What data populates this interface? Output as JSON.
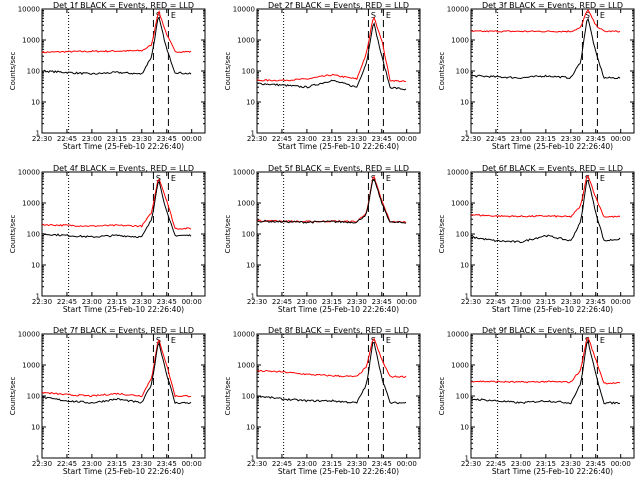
{
  "figure": {
    "time_axis_ticks": [
      "22:30",
      "22:45",
      "23:00",
      "23:15",
      "23:30",
      "23:45",
      "00:00"
    ],
    "y_axis_ticks": [
      "1",
      "10",
      "100",
      "1000",
      "10000"
    ],
    "xlabel": "Start Time (25-Feb-10 22:26:40)",
    "ylabel": "Counts/sec",
    "panel_letters": [
      "S",
      "E"
    ]
  },
  "chart_data": [
    {
      "type": "line",
      "title": "Det 1f BLACK = Events, RED = LLD",
      "xlabel": "Start Time (25-Feb-10 22:26:40)",
      "ylabel": "Counts/sec",
      "yscale": "log",
      "ylim": [
        1,
        10000
      ],
      "x": [
        "22:30",
        "22:45",
        "23:00",
        "23:15",
        "23:30",
        "23:36",
        "23:40",
        "23:45",
        "23:50",
        "00:00"
      ],
      "series": [
        {
          "name": "LLD",
          "color": "#ff0000",
          "values": [
            400,
            420,
            430,
            440,
            450,
            700,
            9000,
            1500,
            420,
            420
          ]
        },
        {
          "name": "Events",
          "color": "#000000",
          "values": [
            100,
            90,
            80,
            90,
            80,
            300,
            6000,
            500,
            90,
            80
          ]
        }
      ],
      "markers": {
        "dashed": [
          "23:37",
          "23:46"
        ],
        "dotted": [
          "22:46"
        ]
      }
    },
    {
      "type": "line",
      "title": "Det 2f BLACK = Events, RED = LLD",
      "xlabel": "Start Time (25-Feb-10 22:26:40)",
      "ylabel": "Counts/sec",
      "yscale": "log",
      "ylim": [
        1,
        10000
      ],
      "x": [
        "22:30",
        "22:45",
        "23:00",
        "23:15",
        "23:30",
        "23:36",
        "23:40",
        "23:45",
        "23:50",
        "00:00"
      ],
      "series": [
        {
          "name": "LLD",
          "color": "#ff0000",
          "values": [
            50,
            50,
            55,
            75,
            55,
            400,
            6000,
            1000,
            50,
            45
          ]
        },
        {
          "name": "Events",
          "color": "#000000",
          "values": [
            40,
            35,
            30,
            50,
            30,
            200,
            4000,
            300,
            30,
            25
          ]
        }
      ],
      "markers": {
        "dashed": [
          "23:37",
          "23:46"
        ],
        "dotted": [
          "22:46"
        ]
      }
    },
    {
      "type": "line",
      "title": "Det 3f BLACK = Events, RED = LLD",
      "xlabel": "Start Time (25-Feb-10 22:26:40)",
      "ylabel": "Counts/sec",
      "yscale": "log",
      "ylim": [
        1,
        10000
      ],
      "x": [
        "22:30",
        "22:45",
        "23:00",
        "23:15",
        "23:30",
        "23:36",
        "23:40",
        "23:45",
        "23:50",
        "00:00"
      ],
      "series": [
        {
          "name": "LLD",
          "color": "#ff0000",
          "values": [
            1900,
            1900,
            1900,
            1900,
            1900,
            2500,
            10000,
            3000,
            1900,
            1900
          ]
        },
        {
          "name": "Events",
          "color": "#000000",
          "values": [
            70,
            65,
            60,
            70,
            60,
            200,
            6000,
            400,
            60,
            60
          ]
        }
      ],
      "markers": {
        "dashed": [
          "23:37",
          "23:46"
        ],
        "dotted": [
          "22:46"
        ]
      }
    },
    {
      "type": "line",
      "title": "Det 4f BLACK = Events, RED = LLD",
      "xlabel": "Start Time (25-Feb-10 22:26:40)",
      "ylabel": "Counts/sec",
      "yscale": "log",
      "ylim": [
        1,
        10000
      ],
      "x": [
        "22:30",
        "22:45",
        "23:00",
        "23:15",
        "23:30",
        "23:36",
        "23:40",
        "23:45",
        "23:50",
        "00:00"
      ],
      "series": [
        {
          "name": "LLD",
          "color": "#ff0000",
          "values": [
            200,
            190,
            180,
            190,
            180,
            500,
            7000,
            1200,
            150,
            150
          ]
        },
        {
          "name": "Events",
          "color": "#000000",
          "values": [
            100,
            90,
            80,
            90,
            80,
            300,
            6000,
            500,
            90,
            90
          ]
        }
      ],
      "markers": {
        "dashed": [
          "23:37",
          "23:46"
        ],
        "dotted": [
          "22:46"
        ]
      }
    },
    {
      "type": "line",
      "title": "Det 5f BLACK = Events, RED = LLD",
      "xlabel": "Start Time (25-Feb-10 22:26:40)",
      "ylabel": "Counts/sec",
      "yscale": "log",
      "ylim": [
        1,
        10000
      ],
      "x": [
        "22:30",
        "22:45",
        "23:00",
        "23:15",
        "23:30",
        "23:36",
        "23:40",
        "23:45",
        "23:50",
        "00:00"
      ],
      "series": [
        {
          "name": "LLD",
          "color": "#ff0000",
          "values": [
            270,
            260,
            250,
            260,
            250,
            500,
            8000,
            1200,
            250,
            240
          ]
        },
        {
          "name": "Events",
          "color": "#000000",
          "values": [
            260,
            250,
            240,
            250,
            240,
            450,
            7000,
            1000,
            240,
            230
          ]
        }
      ],
      "markers": {
        "dashed": [
          "23:37",
          "23:46"
        ],
        "dotted": [
          "22:46"
        ]
      }
    },
    {
      "type": "line",
      "title": "Det 6f BLACK = Events, RED = LLD",
      "xlabel": "Start Time (25-Feb-10 22:26:40)",
      "ylabel": "Counts/sec",
      "yscale": "log",
      "ylim": [
        1,
        10000
      ],
      "x": [
        "22:30",
        "22:45",
        "23:00",
        "23:15",
        "23:30",
        "23:36",
        "23:40",
        "23:45",
        "23:50",
        "00:00"
      ],
      "series": [
        {
          "name": "LLD",
          "color": "#ff0000",
          "values": [
            420,
            380,
            370,
            380,
            360,
            800,
            9000,
            1500,
            360,
            360
          ]
        },
        {
          "name": "Events",
          "color": "#000000",
          "values": [
            80,
            60,
            55,
            90,
            60,
            250,
            7000,
            500,
            60,
            70
          ]
        }
      ],
      "markers": {
        "dashed": [
          "23:37",
          "23:46"
        ],
        "dotted": [
          "22:46"
        ]
      }
    },
    {
      "type": "line",
      "title": "Det 7f BLACK = Events, RED = LLD",
      "xlabel": "Start Time (25-Feb-10 22:26:40)",
      "ylabel": "Counts/sec",
      "yscale": "log",
      "ylim": [
        1,
        10000
      ],
      "x": [
        "22:30",
        "22:45",
        "23:00",
        "23:15",
        "23:30",
        "23:36",
        "23:40",
        "23:45",
        "23:50",
        "00:00"
      ],
      "series": [
        {
          "name": "LLD",
          "color": "#ff0000",
          "values": [
            130,
            110,
            100,
            120,
            100,
            400,
            7000,
            1000,
            100,
            100
          ]
        },
        {
          "name": "Events",
          "color": "#000000",
          "values": [
            90,
            70,
            60,
            80,
            60,
            250,
            6000,
            500,
            60,
            60
          ]
        }
      ],
      "markers": {
        "dashed": [
          "23:37",
          "23:46"
        ],
        "dotted": [
          "22:46"
        ]
      }
    },
    {
      "type": "line",
      "title": "Det 8f BLACK = Events, RED = LLD",
      "xlabel": "Start Time (25-Feb-10 22:26:40)",
      "ylabel": "Counts/sec",
      "yscale": "log",
      "ylim": [
        1,
        10000
      ],
      "x": [
        "22:30",
        "22:45",
        "23:00",
        "23:15",
        "23:30",
        "23:36",
        "23:40",
        "23:45",
        "23:50",
        "00:00"
      ],
      "series": [
        {
          "name": "LLD",
          "color": "#ff0000",
          "values": [
            650,
            600,
            500,
            450,
            420,
            900,
            8000,
            1500,
            420,
            420
          ]
        },
        {
          "name": "Events",
          "color": "#000000",
          "values": [
            100,
            80,
            70,
            70,
            60,
            250,
            7000,
            400,
            60,
            60
          ]
        }
      ],
      "markers": {
        "dashed": [
          "23:37",
          "23:46"
        ],
        "dotted": [
          "22:46"
        ]
      }
    },
    {
      "type": "line",
      "title": "Det 9f BLACK = Events, RED = LLD",
      "xlabel": "Start Time (25-Feb-10 22:26:40)",
      "ylabel": "Counts/sec",
      "yscale": "log",
      "ylim": [
        1,
        10000
      ],
      "x": [
        "22:30",
        "22:45",
        "23:00",
        "23:15",
        "23:30",
        "23:36",
        "23:40",
        "23:45",
        "23:50",
        "00:00"
      ],
      "series": [
        {
          "name": "LLD",
          "color": "#ff0000",
          "values": [
            300,
            290,
            280,
            290,
            280,
            700,
            9000,
            1500,
            260,
            260
          ]
        },
        {
          "name": "Events",
          "color": "#000000",
          "values": [
            80,
            70,
            60,
            70,
            60,
            250,
            7000,
            500,
            60,
            60
          ]
        }
      ],
      "markers": {
        "dashed": [
          "23:37",
          "23:46"
        ],
        "dotted": [
          "22:46"
        ]
      }
    }
  ]
}
